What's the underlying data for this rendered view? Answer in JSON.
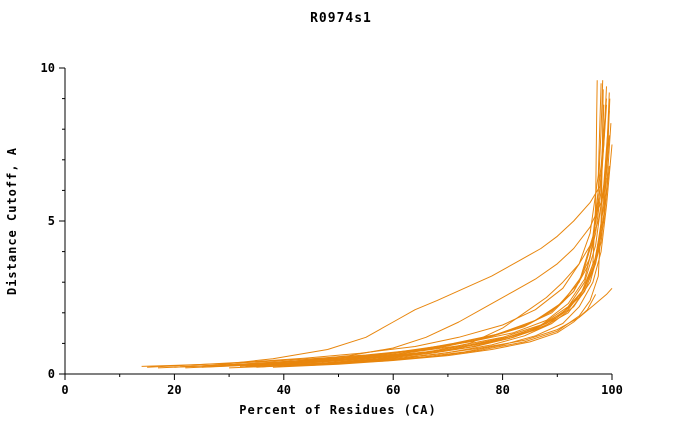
{
  "chart_data": {
    "type": "line",
    "title": "R0974s1",
    "xlabel": "Percent of Residues (CA)",
    "ylabel": "Distance Cutoff, A",
    "xlim": [
      0,
      100
    ],
    "ylim": [
      0,
      10
    ],
    "x_ticks_major": [
      0,
      20,
      40,
      60,
      80,
      100
    ],
    "x_ticks_minor": [
      10,
      30,
      50,
      70,
      90
    ],
    "y_ticks_major": [
      0,
      5,
      10
    ],
    "y_ticks_minor": [
      1,
      2,
      3,
      4,
      6,
      7,
      8,
      9
    ],
    "grid": false,
    "legend": "none",
    "line_color": "#e8860d",
    "axis_color": "#000000",
    "series": [
      [
        [
          14,
          0.25
        ],
        [
          20,
          0.28
        ],
        [
          28,
          0.33
        ],
        [
          36,
          0.4
        ],
        [
          45,
          0.5
        ],
        [
          55,
          0.62
        ],
        [
          65,
          0.8
        ],
        [
          74,
          1.05
        ],
        [
          82,
          1.35
        ],
        [
          88,
          1.75
        ],
        [
          92,
          2.3
        ],
        [
          95,
          3.1
        ],
        [
          96.5,
          4.2
        ],
        [
          97.5,
          6.0
        ],
        [
          98,
          8.0
        ],
        [
          98.3,
          9.6
        ]
      ],
      [
        [
          17,
          0.2
        ],
        [
          25,
          0.26
        ],
        [
          35,
          0.34
        ],
        [
          45,
          0.44
        ],
        [
          55,
          0.58
        ],
        [
          65,
          0.78
        ],
        [
          75,
          1.1
        ],
        [
          83,
          1.5
        ],
        [
          89,
          2.0
        ],
        [
          93,
          2.7
        ],
        [
          96,
          3.8
        ],
        [
          97.5,
          5.5
        ],
        [
          98.5,
          7.5
        ],
        [
          99,
          9.4
        ]
      ],
      [
        [
          20,
          0.22
        ],
        [
          30,
          0.3
        ],
        [
          40,
          0.4
        ],
        [
          50,
          0.52
        ],
        [
          60,
          0.7
        ],
        [
          70,
          0.95
        ],
        [
          78,
          1.25
        ],
        [
          85,
          1.65
        ],
        [
          90,
          2.2
        ],
        [
          94,
          3.0
        ],
        [
          96.5,
          4.5
        ],
        [
          98,
          6.8
        ],
        [
          99,
          9.0
        ]
      ],
      [
        [
          22,
          0.2
        ],
        [
          32,
          0.28
        ],
        [
          42,
          0.38
        ],
        [
          52,
          0.5
        ],
        [
          62,
          0.68
        ],
        [
          72,
          0.92
        ],
        [
          80,
          1.2
        ],
        [
          87,
          1.6
        ],
        [
          92,
          2.2
        ],
        [
          95,
          3.0
        ],
        [
          97,
          4.2
        ],
        [
          98.5,
          6.2
        ],
        [
          99.5,
          8.6
        ]
      ],
      [
        [
          28,
          0.3
        ],
        [
          38,
          0.5
        ],
        [
          48,
          0.8
        ],
        [
          55,
          1.2
        ],
        [
          60,
          1.7
        ],
        [
          64,
          2.1
        ],
        [
          68,
          2.4
        ],
        [
          73,
          2.8
        ],
        [
          78,
          3.2
        ],
        [
          83,
          3.7
        ],
        [
          87,
          4.1
        ],
        [
          90,
          4.5
        ],
        [
          93,
          5.0
        ],
        [
          96,
          5.6
        ],
        [
          98,
          6.2
        ],
        [
          99,
          8.8
        ]
      ],
      [
        [
          30,
          0.28
        ],
        [
          42,
          0.42
        ],
        [
          52,
          0.6
        ],
        [
          60,
          0.85
        ],
        [
          66,
          1.2
        ],
        [
          72,
          1.7
        ],
        [
          77,
          2.2
        ],
        [
          82,
          2.7
        ],
        [
          86,
          3.1
        ],
        [
          90,
          3.6
        ],
        [
          93,
          4.1
        ],
        [
          96,
          4.8
        ],
        [
          98,
          5.6
        ],
        [
          99,
          6.4
        ]
      ],
      [
        [
          35,
          0.22
        ],
        [
          48,
          0.35
        ],
        [
          58,
          0.48
        ],
        [
          68,
          0.65
        ],
        [
          76,
          0.85
        ],
        [
          84,
          1.1
        ],
        [
          90,
          1.45
        ],
        [
          94,
          1.85
        ],
        [
          97,
          2.3
        ],
        [
          99,
          2.6
        ],
        [
          100,
          2.8
        ]
      ],
      [
        [
          25,
          0.22
        ],
        [
          38,
          0.32
        ],
        [
          50,
          0.45
        ],
        [
          60,
          0.6
        ],
        [
          70,
          0.8
        ],
        [
          78,
          1.05
        ],
        [
          85,
          1.4
        ],
        [
          90,
          1.85
        ],
        [
          94,
          2.5
        ],
        [
          96.5,
          3.4
        ],
        [
          98,
          4.8
        ],
        [
          99,
          7.0
        ],
        [
          99.5,
          9.2
        ]
      ],
      [
        [
          32,
          0.25
        ],
        [
          44,
          0.36
        ],
        [
          54,
          0.48
        ],
        [
          64,
          0.64
        ],
        [
          72,
          0.85
        ],
        [
          80,
          1.15
        ],
        [
          86,
          1.5
        ],
        [
          91,
          2.0
        ],
        [
          94.5,
          2.7
        ],
        [
          97,
          3.8
        ],
        [
          98.5,
          5.5
        ],
        [
          99.5,
          7.8
        ]
      ],
      [
        [
          36,
          0.24
        ],
        [
          48,
          0.36
        ],
        [
          58,
          0.5
        ],
        [
          66,
          0.66
        ],
        [
          74,
          0.88
        ],
        [
          81,
          1.15
        ],
        [
          87,
          1.5
        ],
        [
          92,
          2.0
        ],
        [
          95,
          2.7
        ],
        [
          97,
          3.6
        ],
        [
          98.5,
          5.0
        ],
        [
          99.5,
          6.8
        ]
      ],
      [
        [
          40,
          0.25
        ],
        [
          52,
          0.38
        ],
        [
          62,
          0.52
        ],
        [
          70,
          0.7
        ],
        [
          78,
          0.95
        ],
        [
          84,
          1.25
        ],
        [
          89,
          1.65
        ],
        [
          93,
          2.2
        ],
        [
          96,
          3.0
        ],
        [
          98,
          4.3
        ],
        [
          99,
          6.0
        ],
        [
          99.8,
          8.2
        ]
      ],
      [
        [
          15,
          0.22
        ],
        [
          24,
          0.3
        ],
        [
          34,
          0.4
        ],
        [
          44,
          0.52
        ],
        [
          54,
          0.68
        ],
        [
          64,
          0.9
        ],
        [
          72,
          1.2
        ],
        [
          80,
          1.6
        ],
        [
          86,
          2.1
        ],
        [
          91,
          2.8
        ],
        [
          94,
          3.6
        ],
        [
          96,
          4.6
        ],
        [
          97.5,
          6.5
        ],
        [
          98,
          9.5
        ]
      ],
      [
        [
          45,
          0.28
        ],
        [
          55,
          0.4
        ],
        [
          65,
          0.55
        ],
        [
          73,
          0.72
        ],
        [
          80,
          0.95
        ],
        [
          86,
          1.25
        ],
        [
          91,
          1.65
        ],
        [
          94,
          2.2
        ],
        [
          96.5,
          3.0
        ],
        [
          98,
          4.0
        ],
        [
          99,
          5.5
        ],
        [
          100,
          7.5
        ]
      ],
      [
        [
          30,
          0.2
        ],
        [
          45,
          0.3
        ],
        [
          58,
          0.42
        ],
        [
          68,
          0.58
        ],
        [
          76,
          0.78
        ],
        [
          84,
          1.05
        ],
        [
          90,
          1.4
        ],
        [
          94,
          1.9
        ],
        [
          96,
          2.4
        ],
        [
          97.5,
          3.2
        ],
        [
          98,
          5.0
        ],
        [
          98.2,
          7.0
        ],
        [
          98.4,
          9.3
        ]
      ],
      [
        [
          26,
          0.24
        ],
        [
          36,
          0.32
        ],
        [
          46,
          0.42
        ],
        [
          56,
          0.55
        ],
        [
          66,
          0.72
        ],
        [
          74,
          0.95
        ],
        [
          82,
          1.25
        ],
        [
          88,
          1.65
        ],
        [
          92,
          2.15
        ],
        [
          95,
          2.8
        ],
        [
          97,
          3.7
        ],
        [
          98.5,
          5.2
        ],
        [
          99.2,
          7.2
        ],
        [
          99.6,
          9.0
        ]
      ],
      [
        [
          34,
          0.26
        ],
        [
          46,
          0.38
        ],
        [
          56,
          0.52
        ],
        [
          66,
          0.7
        ],
        [
          74,
          1.0
        ],
        [
          80,
          1.5
        ],
        [
          84,
          2.0
        ],
        [
          88,
          2.5
        ],
        [
          91,
          3.0
        ],
        [
          94,
          3.6
        ],
        [
          96,
          4.2
        ],
        [
          97.5,
          5.0
        ],
        [
          98.5,
          6.0
        ],
        [
          99,
          7.0
        ]
      ],
      [
        [
          38,
          0.22
        ],
        [
          50,
          0.32
        ],
        [
          60,
          0.44
        ],
        [
          70,
          0.6
        ],
        [
          78,
          0.8
        ],
        [
          85,
          1.05
        ],
        [
          90,
          1.35
        ],
        [
          93,
          1.7
        ],
        [
          95.5,
          2.1
        ],
        [
          97,
          2.6
        ]
      ],
      [
        [
          21,
          0.24
        ],
        [
          33,
          0.33
        ],
        [
          43,
          0.44
        ],
        [
          53,
          0.57
        ],
        [
          63,
          0.75
        ],
        [
          71,
          1.0
        ],
        [
          79,
          1.3
        ],
        [
          86,
          1.75
        ],
        [
          91,
          2.35
        ],
        [
          94.5,
          3.2
        ],
        [
          96.5,
          4.4
        ],
        [
          98,
          6.3
        ],
        [
          98.8,
          8.4
        ]
      ],
      [
        [
          29,
          0.26
        ],
        [
          41,
          0.37
        ],
        [
          51,
          0.5
        ],
        [
          61,
          0.66
        ],
        [
          69,
          0.88
        ],
        [
          77,
          1.18
        ],
        [
          84,
          1.55
        ],
        [
          89,
          2.05
        ],
        [
          93,
          2.7
        ],
        [
          95.5,
          3.5
        ],
        [
          97,
          4.6
        ],
        [
          98,
          6.0
        ],
        [
          98.5,
          8.8
        ]
      ],
      [
        [
          33,
          0.24
        ],
        [
          47,
          0.36
        ],
        [
          57,
          0.5
        ],
        [
          67,
          0.68
        ],
        [
          75,
          0.9
        ],
        [
          82,
          1.2
        ],
        [
          88,
          1.6
        ],
        [
          92,
          2.1
        ],
        [
          95,
          2.8
        ],
        [
          96.5,
          3.6
        ],
        [
          97,
          5.5
        ],
        [
          97.2,
          8.5
        ],
        [
          97.3,
          9.6
        ]
      ]
    ]
  }
}
